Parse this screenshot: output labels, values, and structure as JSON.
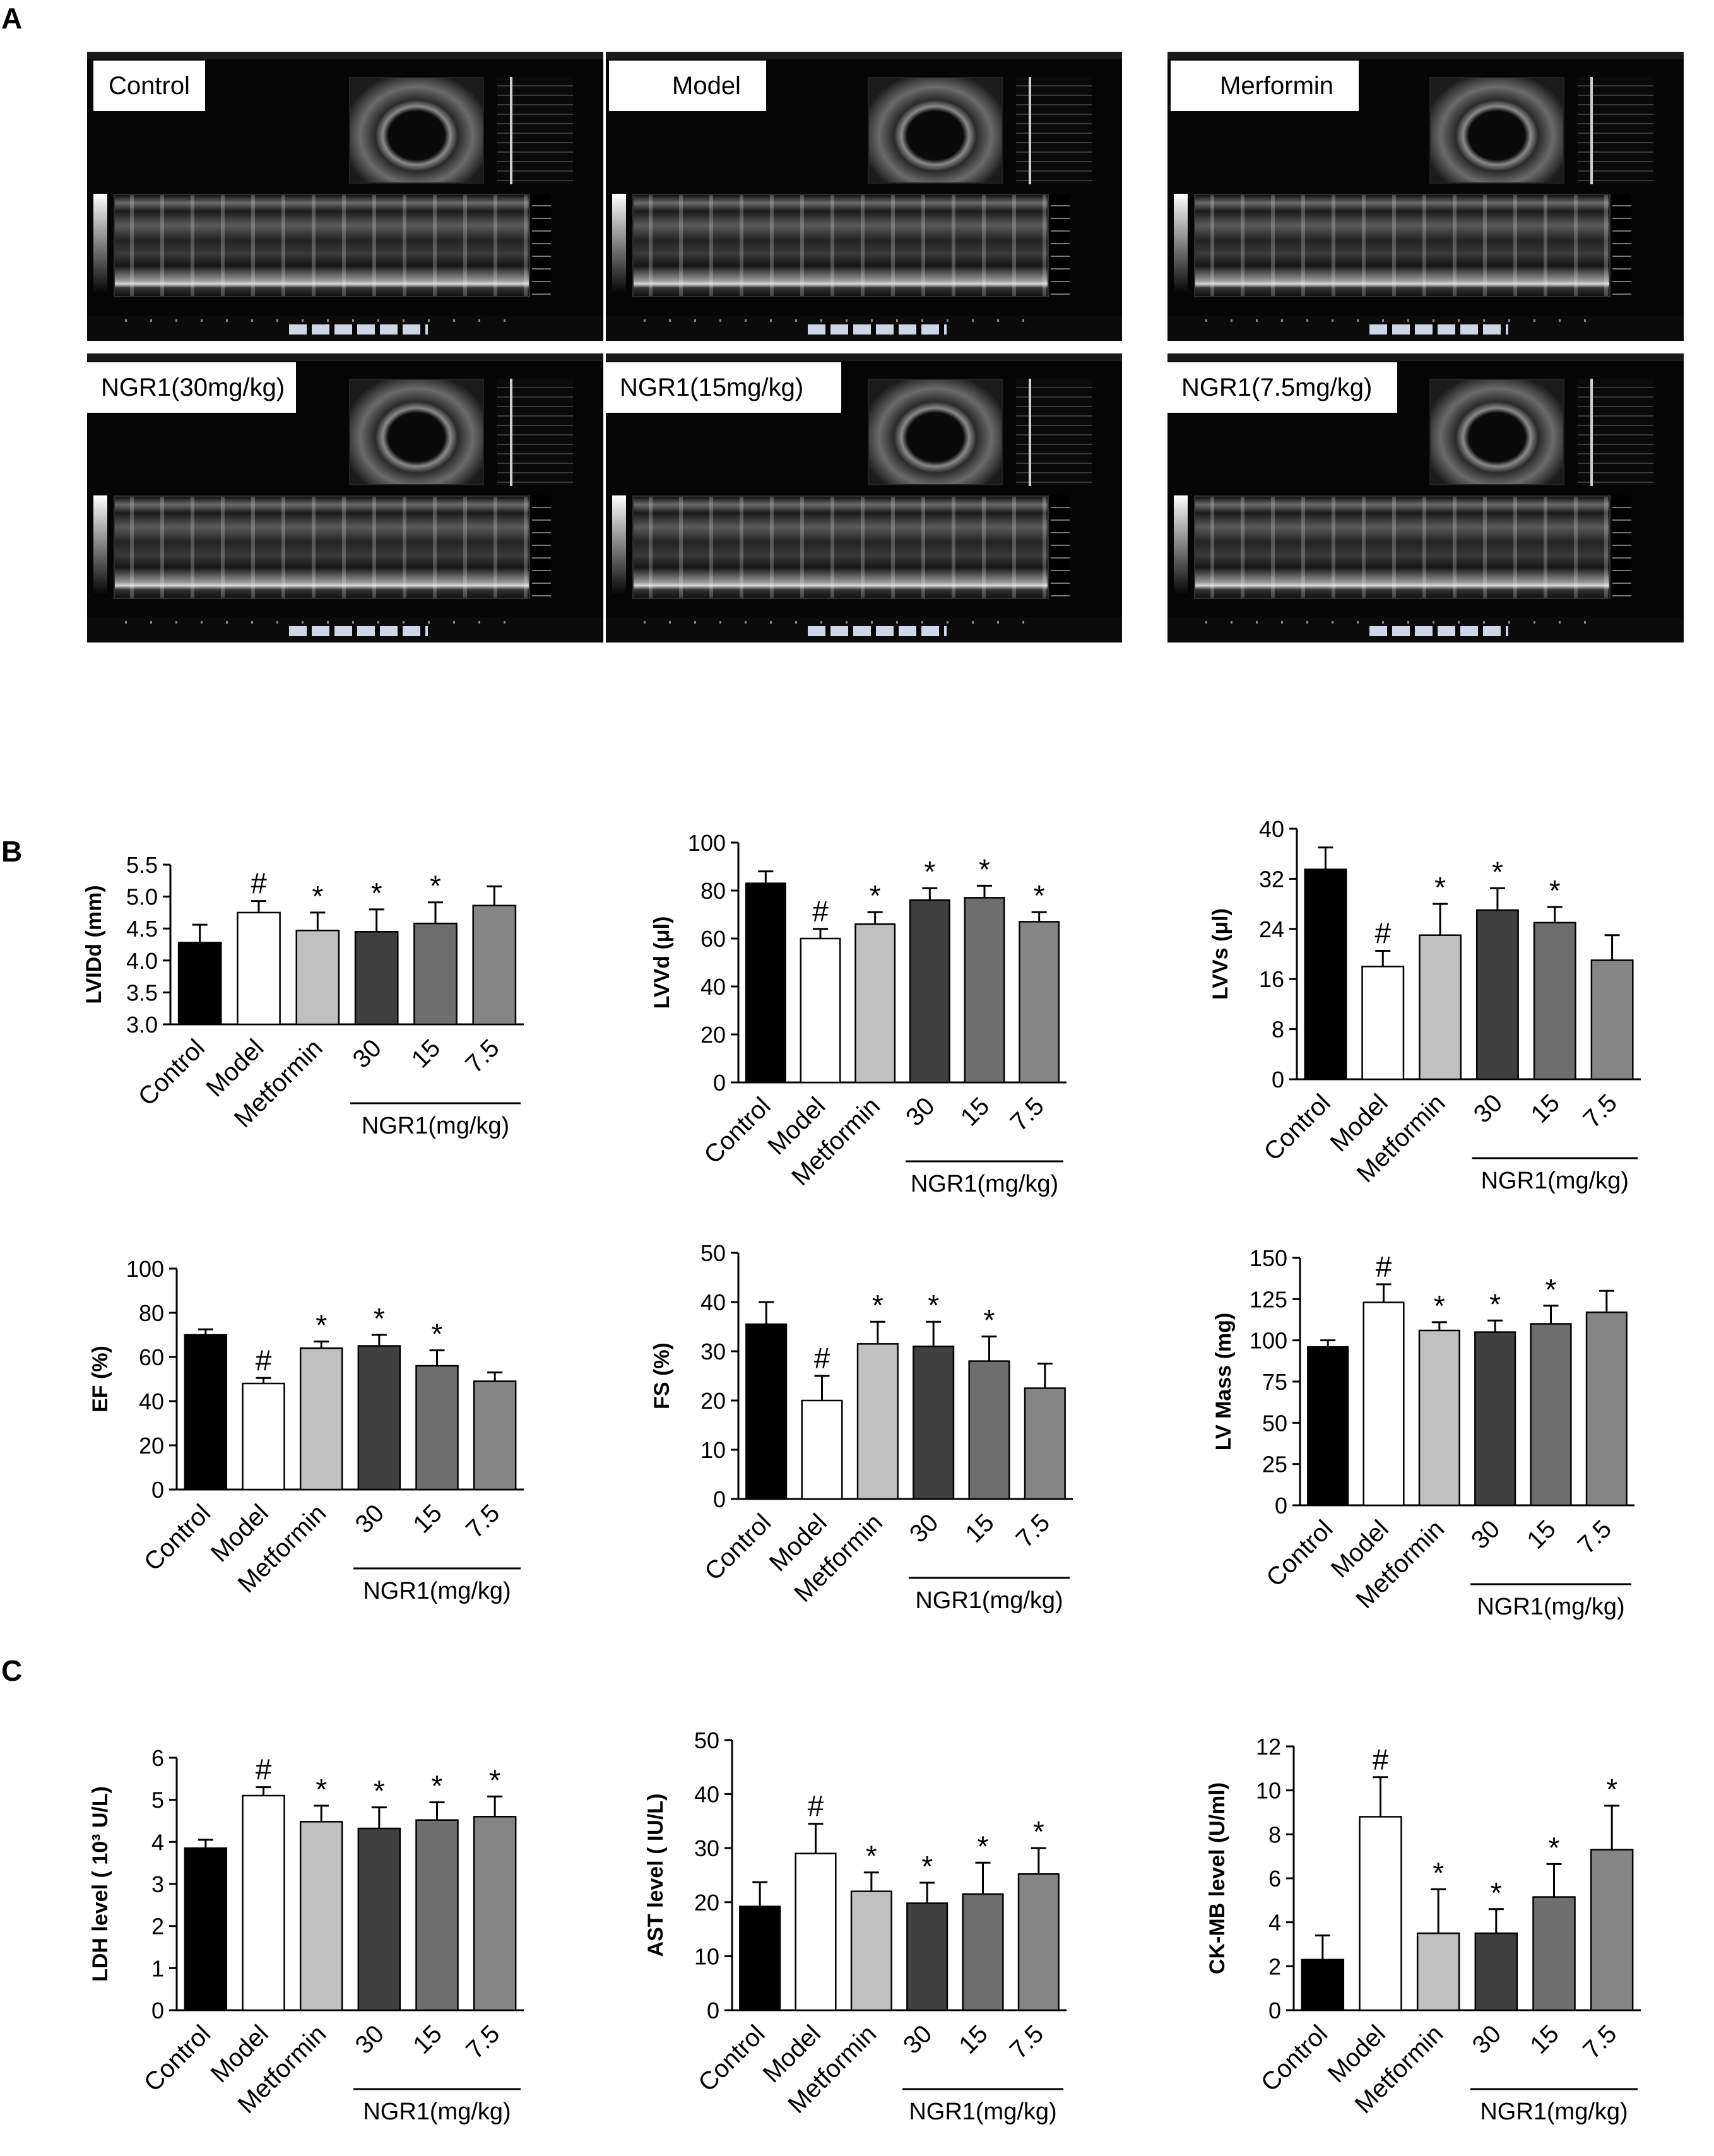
{
  "panels": {
    "a": "A",
    "b": "B",
    "c": "C"
  },
  "echo_labels": [
    "Control",
    "Model",
    "Merformin",
    "NGR1(30mg/kg)",
    "NGR1(15mg/kg)",
    "NGR1(7.5mg/kg)"
  ],
  "colors": {
    "bars": [
      "#000000",
      "#ffffff",
      "#c0c0c0",
      "#404040",
      "#6e6e6e",
      "#858585"
    ]
  },
  "chart_data": [
    {
      "id": "lvidd",
      "type": "bar",
      "title": "",
      "xlabel": "",
      "ylabel": "LVIDd (mm)",
      "ylim": [
        3.0,
        5.5
      ],
      "yticks": [
        "3.0",
        "3.5",
        "4.0",
        "4.5",
        "5.0",
        "5.5"
      ],
      "categories": [
        "Control",
        "Model",
        "Metformin",
        "30",
        "15",
        "7.5"
      ],
      "group_label": "NGR1(mg/kg)",
      "values": [
        4.28,
        4.75,
        4.47,
        4.45,
        4.58,
        4.86
      ],
      "errors": [
        0.28,
        0.18,
        0.28,
        0.35,
        0.33,
        0.3
      ],
      "marks": [
        "",
        "#",
        "*",
        "*",
        "*",
        ""
      ]
    },
    {
      "id": "lvvd",
      "type": "bar",
      "title": "",
      "xlabel": "",
      "ylabel": "LVVd (μl)",
      "ylim": [
        0,
        100
      ],
      "yticks": [
        "0",
        "20",
        "40",
        "60",
        "80",
        "100"
      ],
      "categories": [
        "Control",
        "Model",
        "Metformin",
        "30",
        "15",
        "7.5"
      ],
      "group_label": "NGR1(mg/kg)",
      "values": [
        83,
        60,
        66,
        76,
        77,
        67
      ],
      "errors": [
        5,
        4,
        5,
        5,
        5,
        4
      ],
      "marks": [
        "",
        "#",
        "*",
        "*",
        "*",
        "*"
      ]
    },
    {
      "id": "lvvs",
      "type": "bar",
      "title": "",
      "xlabel": "",
      "ylabel": "LVVs (μl)",
      "ylim": [
        0,
        40
      ],
      "yticks": [
        "0",
        "8",
        "16",
        "24",
        "32",
        "40"
      ],
      "categories": [
        "Control",
        "Model",
        "Metformin",
        "30",
        "15",
        "7.5"
      ],
      "group_label": "NGR1(mg/kg)",
      "values": [
        33.5,
        18,
        23,
        27,
        25,
        19
      ],
      "errors": [
        3.5,
        2.5,
        5,
        3.5,
        2.5,
        4
      ],
      "marks": [
        "",
        "#",
        "*",
        "*",
        "*",
        ""
      ]
    },
    {
      "id": "ef",
      "type": "bar",
      "title": "",
      "xlabel": "",
      "ylabel": "EF (%)",
      "ylim": [
        0,
        100
      ],
      "yticks": [
        "0",
        "20",
        "40",
        "60",
        "80",
        "100"
      ],
      "categories": [
        "Control",
        "Model",
        "Metformin",
        "30",
        "15",
        "7.5"
      ],
      "group_label": "NGR1(mg/kg)",
      "values": [
        70,
        48,
        64,
        65,
        56,
        49
      ],
      "errors": [
        2.5,
        2.5,
        3,
        5,
        7,
        4
      ],
      "marks": [
        "",
        "#",
        "*",
        "*",
        "*",
        ""
      ]
    },
    {
      "id": "fs",
      "type": "bar",
      "title": "",
      "xlabel": "",
      "ylabel": "FS (%)",
      "ylim": [
        0,
        50
      ],
      "yticks": [
        "0",
        "10",
        "20",
        "30",
        "40",
        "50"
      ],
      "categories": [
        "Control",
        "Model",
        "Metformin",
        "30",
        "15",
        "7.5"
      ],
      "group_label": "NGR1(mg/kg)",
      "values": [
        35.5,
        20,
        31.5,
        31,
        28,
        22.5
      ],
      "errors": [
        4.5,
        5,
        4.5,
        5,
        5,
        5
      ],
      "marks": [
        "",
        "#",
        "*",
        "*",
        "*",
        ""
      ]
    },
    {
      "id": "lvmass",
      "type": "bar",
      "title": "",
      "xlabel": "",
      "ylabel": "LV Mass (mg)",
      "ylim": [
        0,
        150
      ],
      "yticks": [
        "0",
        "25",
        "50",
        "75",
        "100",
        "125",
        "150"
      ],
      "categories": [
        "Control",
        "Model",
        "Metformin",
        "30",
        "15",
        "7.5"
      ],
      "group_label": "NGR1(mg/kg)",
      "values": [
        96,
        123,
        106,
        105,
        110,
        117
      ],
      "errors": [
        4,
        11,
        5,
        7,
        11,
        13
      ],
      "marks": [
        "",
        "#",
        "*",
        "*",
        "*",
        ""
      ]
    },
    {
      "id": "ldh",
      "type": "bar",
      "title": "",
      "xlabel": "",
      "ylabel": "LDH level ( 10³ U/L)",
      "ylim": [
        0,
        6
      ],
      "yticks": [
        "0",
        "1",
        "2",
        "3",
        "4",
        "5",
        "6"
      ],
      "categories": [
        "Control",
        "Model",
        "Metformin",
        "30",
        "15",
        "7.5"
      ],
      "group_label": "NGR1(mg/kg)",
      "values": [
        3.85,
        5.1,
        4.48,
        4.32,
        4.52,
        4.6
      ],
      "errors": [
        0.2,
        0.2,
        0.38,
        0.5,
        0.42,
        0.48
      ],
      "marks": [
        "",
        "#",
        "*",
        "*",
        "*",
        "*"
      ]
    },
    {
      "id": "ast",
      "type": "bar",
      "title": "",
      "xlabel": "",
      "ylabel": "AST level ( IU/L)",
      "ylim": [
        0,
        50
      ],
      "yticks": [
        "0",
        "10",
        "20",
        "30",
        "40",
        "50"
      ],
      "categories": [
        "Control",
        "Model",
        "Metformin",
        "30",
        "15",
        "7.5"
      ],
      "group_label": "NGR1(mg/kg)",
      "values": [
        19.2,
        29,
        22,
        19.8,
        21.5,
        25.2
      ],
      "errors": [
        4.5,
        5.5,
        3.5,
        3.8,
        5.8,
        4.8
      ],
      "marks": [
        "",
        "#",
        "*",
        "*",
        "*",
        "*"
      ]
    },
    {
      "id": "ckmb",
      "type": "bar",
      "title": "",
      "xlabel": "",
      "ylabel": "CK-MB level (U/ml)",
      "ylim": [
        0,
        12
      ],
      "yticks": [
        "0",
        "2",
        "4",
        "6",
        "8",
        "10",
        "12"
      ],
      "categories": [
        "Control",
        "Model",
        "Metformin",
        "30",
        "15",
        "7.5"
      ],
      "group_label": "NGR1(mg/kg)",
      "values": [
        2.3,
        8.8,
        3.5,
        3.5,
        5.15,
        7.3
      ],
      "errors": [
        1.1,
        1.8,
        2.0,
        1.1,
        1.5,
        2.0
      ],
      "marks": [
        "",
        "#",
        "*",
        "*",
        "*",
        "*"
      ]
    }
  ]
}
